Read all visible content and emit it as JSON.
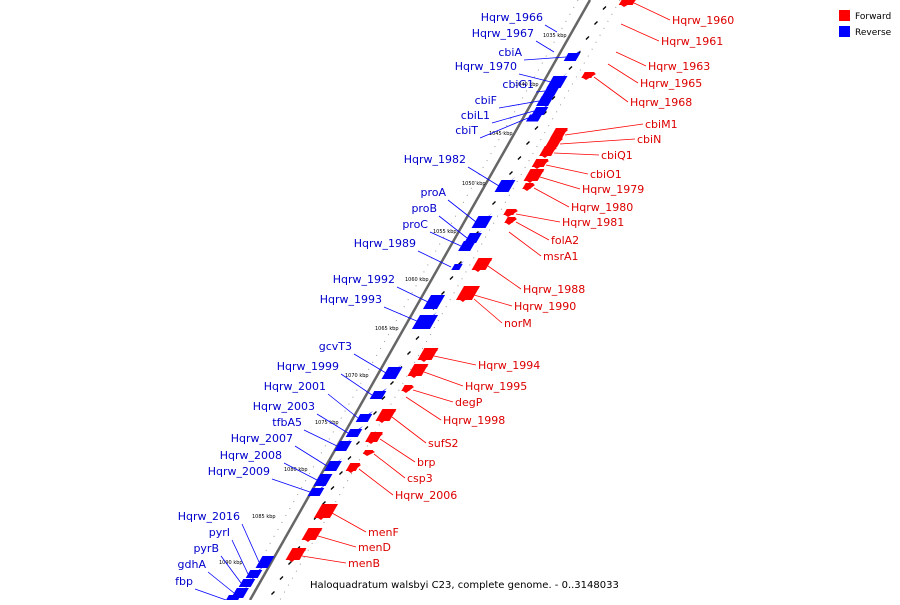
{
  "title": "Haloquadratum walsbyi C23, complete genome. - 0..3148033",
  "legend": [
    {
      "label": "Forward",
      "color": "#ff0000"
    },
    {
      "label": "Reverse",
      "color": "#0000ff"
    }
  ],
  "colors": {
    "forward": "#ff0000",
    "reverse": "#0000ff",
    "forward_label": "#dd0000",
    "reverse_label": "#0000cc",
    "backbone": "#666666"
  },
  "ticks": [
    "1035 kbp",
    "1040 kbp",
    "1045 kbp",
    "1050 kbp",
    "1055 kbp",
    "1060 kbp",
    "1065 kbp",
    "1070 kbp",
    "1075 kbp",
    "1080 kbp",
    "1085 kbp",
    "1090 kbp"
  ],
  "reverse_genes": [
    "Hqrw_1966",
    "Hqrw_1967",
    "cbiA",
    "Hqrw_1970",
    "cbiG1",
    "cbiF",
    "cbiL1",
    "cbiT",
    "Hqrw_1982",
    "proA",
    "proB",
    "proC",
    "Hqrw_1989",
    "Hqrw_1992",
    "Hqrw_1993",
    "gcvT3",
    "Hqrw_1999",
    "Hqrw_2001",
    "Hqrw_2003",
    "tfbA5",
    "Hqrw_2007",
    "Hqrw_2008",
    "Hqrw_2009",
    "Hqrw_2016",
    "pyrI",
    "pyrB",
    "gdhA",
    "fbp"
  ],
  "forward_genes": [
    "Hqrw_1960",
    "Hqrw_1961",
    "Hqrw_1963",
    "Hqrw_1965",
    "Hqrw_1968",
    "cbiM1",
    "cbiN",
    "cbiQ1",
    "cbiO1",
    "Hqrw_1979",
    "Hqrw_1980",
    "Hqrw_1981",
    "folA2",
    "msrA1",
    "Hqrw_1988",
    "Hqrw_1990",
    "norM",
    "Hqrw_1994",
    "Hqrw_1995",
    "degP",
    "Hqrw_1998",
    "sufS2",
    "brp",
    "csp3",
    "Hqrw_2006",
    "menF",
    "menD",
    "menB"
  ]
}
